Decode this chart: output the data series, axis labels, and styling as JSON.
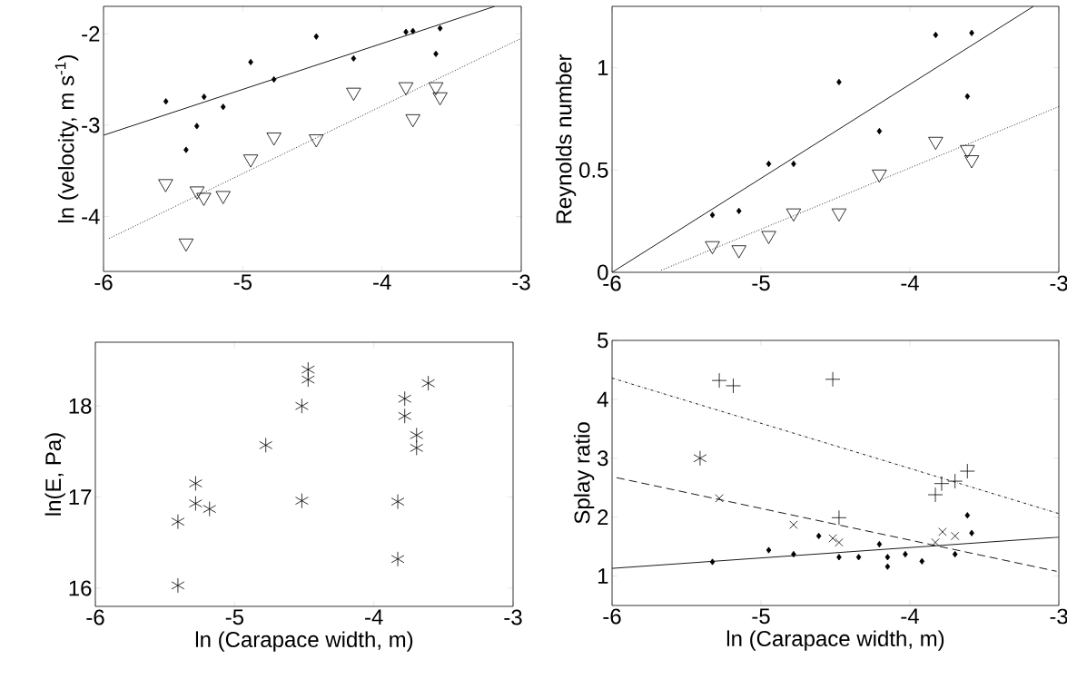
{
  "chart_data": [
    {
      "type": "scatter",
      "ylabel": "ln (velocity, m s$^{-1}$)",
      "xlim": [
        -6,
        -3
      ],
      "ylim": [
        -4.6,
        -1.7
      ],
      "xticks": [
        -6,
        -5,
        -4,
        -3
      ],
      "yticks": [
        -4,
        -3,
        -2
      ],
      "series": [
        {
          "color": "#000000",
          "marker": "diamond",
          "x": [
            -5.552,
            -5.407,
            -5.33,
            -5.278,
            -5.141,
            -4.943,
            -4.776,
            -4.472,
            -4.204,
            -3.828,
            -3.778,
            -3.583,
            -3.613
          ],
          "values": [
            -2.74,
            -3.27,
            -3.01,
            -2.69,
            -2.8,
            -2.31,
            -2.5,
            -2.03,
            -2.27,
            -1.98,
            -1.97,
            -1.94,
            -2.22
          ]
        },
        {
          "color": "#000000",
          "marker": "triangle",
          "x": [
            -5.554,
            -5.407,
            -5.328,
            -5.28,
            -5.141,
            -4.943,
            -4.776,
            -4.472,
            -4.204,
            -3.828,
            -3.778,
            -3.613,
            -3.583
          ],
          "values": [
            -3.64,
            -4.29,
            -3.72,
            -3.79,
            -3.77,
            -3.37,
            -3.13,
            -3.15,
            -2.64,
            -2.58,
            -2.93,
            -2.58,
            -2.69
          ]
        },
        {
          "type": "line",
          "color": "#000000",
          "line_style": "solid",
          "x": [
            -6,
            -3.19
          ],
          "values": [
            -3.11,
            -1.7
          ]
        },
        {
          "type": "line",
          "color": "#000000",
          "line_style": "dotted",
          "x": [
            -5.96,
            -3
          ],
          "values": [
            -4.24,
            -2.05
          ]
        }
      ]
    },
    {
      "type": "scatter",
      "ylabel": "Reynolds number",
      "xlim": [
        -6,
        -3
      ],
      "ylim": [
        0,
        1.3
      ],
      "xticks": [
        -6,
        -5,
        -4,
        -3
      ],
      "yticks": [
        0,
        0.5,
        1
      ],
      "series": [
        {
          "color": "#000000",
          "marker": "diamond",
          "x": [
            -5.326,
            -5.148,
            -4.948,
            -4.781,
            -4.476,
            -4.205,
            -3.827,
            -3.585,
            -3.614
          ],
          "values": [
            0.28,
            0.3,
            0.53,
            0.53,
            0.93,
            0.69,
            1.16,
            1.17,
            0.86
          ]
        },
        {
          "color": "#000000",
          "marker": "triangle",
          "x": [
            -5.326,
            -5.148,
            -4.948,
            -4.781,
            -4.476,
            -4.205,
            -3.827,
            -3.614,
            -3.585
          ],
          "values": [
            0.13,
            0.11,
            0.18,
            0.29,
            0.29,
            0.48,
            0.64,
            0.6,
            0.55
          ]
        },
        {
          "type": "line",
          "color": "#000000",
          "line_style": "solid",
          "x": [
            -6,
            -3.17
          ],
          "values": [
            0,
            1.3
          ]
        },
        {
          "type": "line",
          "color": "#000000",
          "line_style": "dotted",
          "x": [
            -5.67,
            -3
          ],
          "values": [
            0.01,
            0.81
          ]
        }
      ]
    },
    {
      "type": "scatter",
      "ylabel": "ln(E, Pa)",
      "xlabel": "ln (Carapace width, m)",
      "xlim": [
        -6,
        -3
      ],
      "ylim": [
        15.8,
        18.7
      ],
      "xticks": [
        -6,
        -5,
        -4,
        -3
      ],
      "yticks": [
        16,
        17,
        18
      ],
      "series": [
        {
          "color": "#000000",
          "x": [
            -5.407,
            -5.407,
            -5.28,
            -5.28,
            -5.18,
            -4.776,
            -4.517,
            -4.517,
            -4.472,
            -4.472,
            -3.828,
            -3.828,
            -3.778,
            -3.778,
            -3.693,
            -3.693,
            -3.609
          ],
          "values": [
            16.03,
            16.73,
            17.15,
            16.93,
            16.87,
            17.57,
            18.0,
            16.96,
            18.4,
            18.29,
            16.95,
            16.32,
            18.08,
            17.89,
            17.68,
            17.54,
            18.25
          ]
        }
      ]
    },
    {
      "type": "scatter",
      "ylabel": "Splay ratio",
      "xlabel": "ln (Carapace width, m)",
      "xlim": [
        -6,
        -3
      ],
      "ylim": [
        0.5,
        5
      ],
      "xticks": [
        -6,
        -5,
        -4,
        -3
      ],
      "yticks": [
        1,
        2,
        3,
        4,
        5
      ],
      "series": [
        {
          "color": "#000000",
          "marker": "diamond",
          "x": [
            -5.326,
            -4.948,
            -4.781,
            -4.612,
            -4.476,
            -4.344,
            -4.205,
            -4.15,
            -4.15,
            -4.031,
            -3.919,
            -3.697,
            -3.614,
            -3.585
          ],
          "values": [
            1.24,
            1.44,
            1.37,
            1.68,
            1.32,
            1.32,
            1.54,
            1.32,
            1.16,
            1.37,
            1.25,
            1.37,
            2.03,
            1.73
          ]
        },
        {
          "color": "#000000",
          "marker": "cross",
          "x": [
            -5.28,
            -4.781,
            -4.518,
            -4.476,
            -3.829,
            -3.781,
            -3.697
          ],
          "values": [
            2.32,
            1.87,
            1.64,
            1.57,
            1.57,
            1.75,
            1.68
          ]
        },
        {
          "color": "#000000",
          "marker": "plus",
          "x": [
            -5.28,
            -5.186,
            -4.518,
            -4.476,
            -3.829,
            -3.787,
            -3.697,
            -3.614
          ],
          "values": [
            4.32,
            4.23,
            4.34,
            1.99,
            2.38,
            2.57,
            2.61,
            2.78
          ]
        },
        {
          "color": "#000000",
          "x": [
            -5.409
          ],
          "values": [
            3.0
          ]
        },
        {
          "type": "line",
          "color": "#000000",
          "line_style": "dashdot",
          "x": [
            -6,
            -3
          ],
          "values": [
            4.36,
            2.06
          ]
        },
        {
          "type": "line",
          "color": "#000000",
          "line_style": "dashed",
          "x": [
            -5.97,
            -3.015
          ],
          "values": [
            2.67,
            1.08
          ]
        },
        {
          "type": "line",
          "color": "#000000",
          "line_style": "solid",
          "x": [
            -6,
            -3
          ],
          "values": [
            1.13,
            1.66
          ]
        }
      ]
    }
  ]
}
